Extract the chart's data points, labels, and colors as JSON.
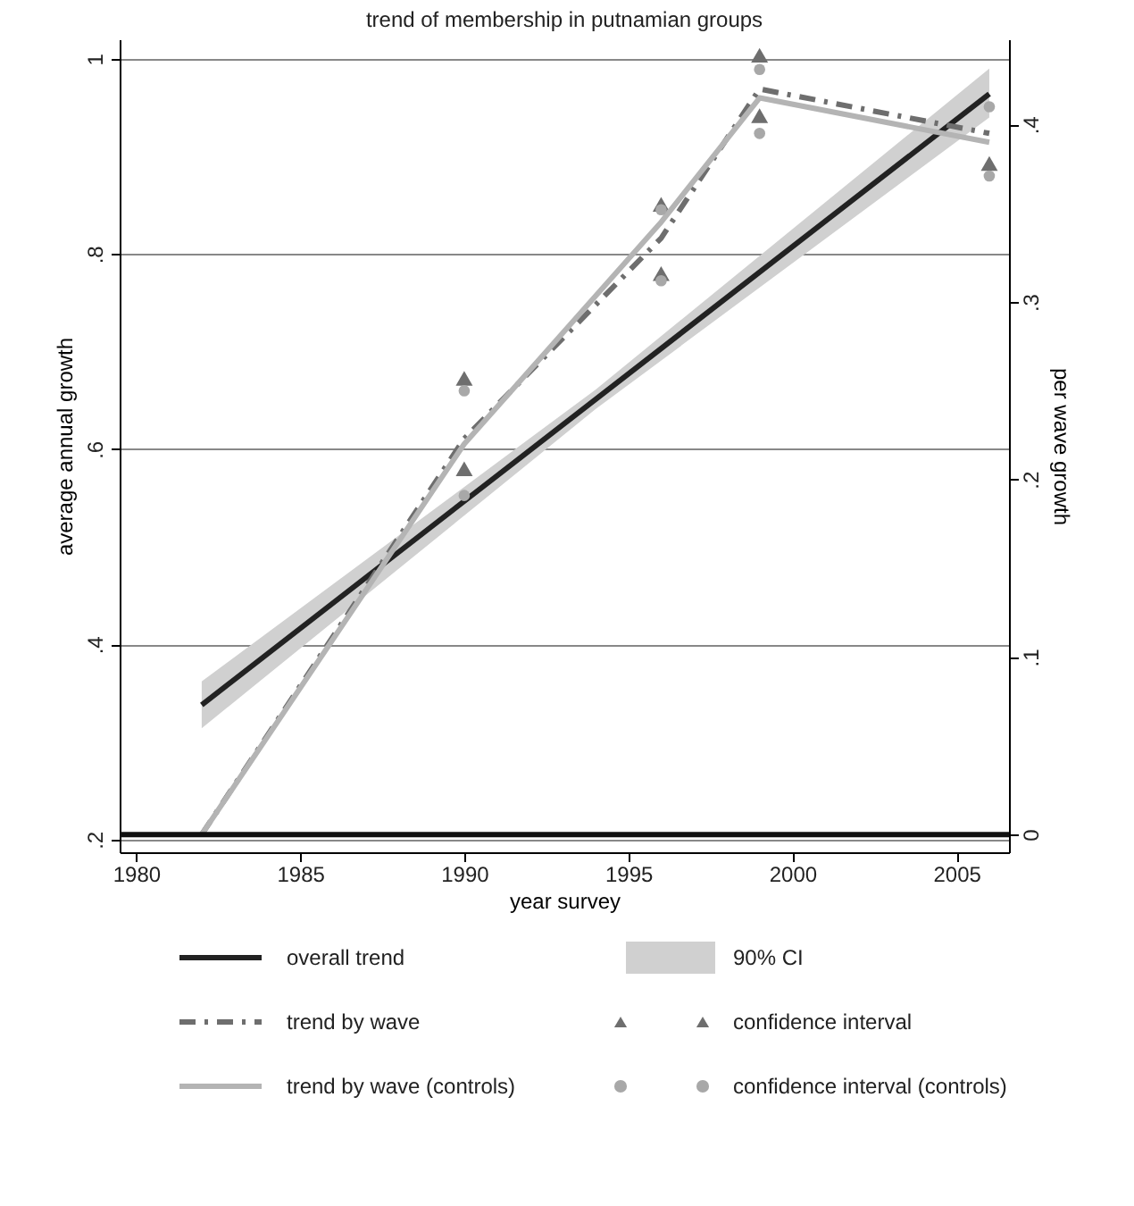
{
  "chart_data": {
    "type": "line",
    "title": "trend of membership in putnamian groups",
    "xlabel": "year survey",
    "ylabel": "average annual growth",
    "y2label": "per wave growth",
    "xlim": [
      1979.5,
      2006.6
    ],
    "xticks": [
      1980,
      1985,
      1990,
      1995,
      2000,
      2005
    ],
    "ylim": [
      0.187,
      1.02
    ],
    "yticks": [
      {
        "value": 0.2,
        "label": ".2"
      },
      {
        "value": 0.4,
        "label": ".4"
      },
      {
        "value": 0.6,
        "label": ".6"
      },
      {
        "value": 0.8,
        "label": ".8"
      },
      {
        "value": 1,
        "label": "1"
      }
    ],
    "y2lim": [
      -0.01,
      0.448
    ],
    "y2ticks": [
      {
        "value": 0,
        "label": "0"
      },
      {
        "value": 0.1,
        "label": ".1"
      },
      {
        "value": 0.2,
        "label": ".2"
      },
      {
        "value": 0.3,
        "label": ".3"
      },
      {
        "value": 0.4,
        "label": ".4"
      }
    ],
    "grid": "y",
    "legend": "bottom",
    "series": [
      {
        "name": "overall trend",
        "color": "#222222",
        "line_style": "solid",
        "x": [
          1982,
          1994,
          2006
        ],
        "values": [
          0.338,
          0.651,
          0.964
        ],
        "lower": [
          0.314,
          0.641,
          0.94
        ],
        "upper": [
          0.362,
          0.661,
          0.99
        ]
      },
      {
        "name": "trend by wave",
        "axis": "y2",
        "color": "#6e6e6e",
        "line_style": "dashed",
        "x": [
          1982,
          1990,
          1996,
          1999,
          2006
        ],
        "values": [
          0,
          0.223,
          0.336,
          0.42,
          0.395
        ]
      },
      {
        "name": "confidence interval",
        "type": "scatter",
        "axis": "y2",
        "marker": "triangle",
        "color": "#6e6e6e",
        "x": [
          1990,
          1990,
          1996,
          1996,
          1999,
          1999,
          2006
        ],
        "values": [
          0.257,
          0.206,
          0.355,
          0.316,
          0.439,
          0.405,
          0.378
        ]
      },
      {
        "name": "trend by wave (controls)",
        "axis": "y2",
        "color": "#b4b4b4",
        "line_style": "solid",
        "x": [
          1982,
          1990,
          1996,
          1999,
          2006
        ],
        "values": [
          0,
          0.22,
          0.345,
          0.415,
          0.39
        ]
      },
      {
        "name": "confidence interval (controls)",
        "type": "scatter",
        "axis": "y2",
        "marker": "circle",
        "color": "#a8a8a8",
        "x": [
          1990,
          1990,
          1996,
          1996,
          1999,
          1999,
          2006,
          2006
        ],
        "values": [
          0.25,
          0.191,
          0.352,
          0.312,
          0.431,
          0.395,
          0.41,
          0.371
        ]
      }
    ],
    "annotations": [
      "90% CI"
    ],
    "ref_lines": [
      {
        "axis": "y2",
        "value": 0,
        "color": "#111111"
      }
    ]
  }
}
